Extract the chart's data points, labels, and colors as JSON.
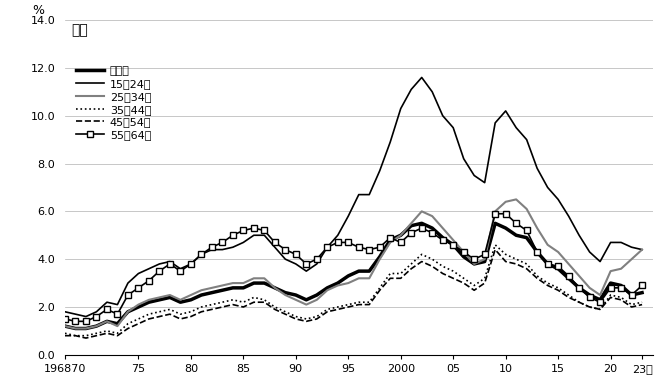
{
  "title": "男性",
  "ylabel": "%",
  "ylim": [
    0.0,
    14.0
  ],
  "yticks": [
    0.0,
    2.0,
    4.0,
    6.0,
    8.0,
    10.0,
    12.0,
    14.0
  ],
  "xtick_labels": [
    "196870",
    "75",
    "80",
    "85",
    "90",
    "95",
    "2000",
    "05",
    "10",
    "15",
    "20",
    "23年"
  ],
  "xtick_positions": [
    1968,
    1975,
    1980,
    1985,
    1990,
    1995,
    2000,
    2005,
    2010,
    2015,
    2020,
    2023
  ],
  "years": [
    1968,
    1969,
    1970,
    1971,
    1972,
    1973,
    1974,
    1975,
    1976,
    1977,
    1978,
    1979,
    1980,
    1981,
    1982,
    1983,
    1984,
    1985,
    1986,
    1987,
    1988,
    1989,
    1990,
    1991,
    1992,
    1993,
    1994,
    1995,
    1996,
    1997,
    1998,
    1999,
    2000,
    2001,
    2002,
    2003,
    2004,
    2005,
    2006,
    2007,
    2008,
    2009,
    2010,
    2011,
    2012,
    2013,
    2014,
    2015,
    2016,
    2017,
    2018,
    2019,
    2020,
    2021,
    2022,
    2023
  ],
  "series": {
    "年齢計": {
      "color": "#000000",
      "linewidth": 2.5,
      "linestyle": "solid",
      "marker": null,
      "markersize": 0,
      "values": [
        1.2,
        1.1,
        1.1,
        1.2,
        1.4,
        1.3,
        1.8,
        2.0,
        2.2,
        2.3,
        2.4,
        2.2,
        2.3,
        2.5,
        2.6,
        2.7,
        2.8,
        2.8,
        3.0,
        3.0,
        2.8,
        2.6,
        2.5,
        2.3,
        2.5,
        2.8,
        3.0,
        3.3,
        3.5,
        3.5,
        4.1,
        4.8,
        5.0,
        5.4,
        5.5,
        5.3,
        4.9,
        4.6,
        4.1,
        3.8,
        3.9,
        5.5,
        5.3,
        5.0,
        4.9,
        4.3,
        3.8,
        3.6,
        3.2,
        2.8,
        2.5,
        2.3,
        3.0,
        2.9,
        2.5,
        2.6
      ]
    },
    "15～24歳": {
      "color": "#000000",
      "linewidth": 1.2,
      "linestyle": "solid",
      "marker": null,
      "markersize": 0,
      "values": [
        1.8,
        1.7,
        1.6,
        1.8,
        2.2,
        2.1,
        3.0,
        3.4,
        3.6,
        3.8,
        3.9,
        3.6,
        3.8,
        4.2,
        4.4,
        4.4,
        4.5,
        4.7,
        5.0,
        5.0,
        4.5,
        4.0,
        3.8,
        3.5,
        3.8,
        4.5,
        5.0,
        5.8,
        6.7,
        6.7,
        7.7,
        8.9,
        10.3,
        11.1,
        11.6,
        11.0,
        10.0,
        9.5,
        8.2,
        7.5,
        7.2,
        9.7,
        10.2,
        9.5,
        9.0,
        7.8,
        7.0,
        6.5,
        5.8,
        5.0,
        4.3,
        3.9,
        4.7,
        4.7,
        4.5,
        4.4
      ]
    },
    "25～34歳": {
      "color": "#808080",
      "linewidth": 1.5,
      "linestyle": "solid",
      "marker": null,
      "markersize": 0,
      "values": [
        1.2,
        1.1,
        1.1,
        1.2,
        1.4,
        1.2,
        1.8,
        2.1,
        2.3,
        2.4,
        2.5,
        2.3,
        2.5,
        2.7,
        2.8,
        2.9,
        3.0,
        3.0,
        3.2,
        3.2,
        2.8,
        2.5,
        2.3,
        2.1,
        2.3,
        2.7,
        2.9,
        3.0,
        3.2,
        3.2,
        4.0,
        4.7,
        5.0,
        5.5,
        6.0,
        5.8,
        5.3,
        4.8,
        4.3,
        3.8,
        4.0,
        6.0,
        6.4,
        6.5,
        6.1,
        5.3,
        4.6,
        4.3,
        3.8,
        3.3,
        2.8,
        2.5,
        3.5,
        3.6,
        4.0,
        4.4
      ]
    },
    "35～44歳": {
      "color": "#000000",
      "linewidth": 1.2,
      "linestyle": "dotted",
      "marker": null,
      "markersize": 0,
      "values": [
        0.9,
        0.8,
        0.8,
        0.9,
        1.0,
        0.9,
        1.3,
        1.5,
        1.7,
        1.8,
        1.9,
        1.7,
        1.8,
        2.0,
        2.1,
        2.2,
        2.3,
        2.2,
        2.4,
        2.3,
        2.0,
        1.8,
        1.6,
        1.5,
        1.6,
        1.9,
        2.0,
        2.1,
        2.2,
        2.2,
        2.8,
        3.4,
        3.4,
        3.8,
        4.2,
        4.0,
        3.7,
        3.5,
        3.2,
        2.9,
        3.2,
        4.6,
        4.2,
        4.0,
        3.8,
        3.3,
        3.0,
        2.8,
        2.5,
        2.2,
        2.0,
        1.9,
        2.5,
        2.4,
        2.1,
        2.2
      ]
    },
    "45～54歳": {
      "color": "#000000",
      "linewidth": 1.2,
      "linestyle": "dashed",
      "marker": null,
      "markersize": 0,
      "values": [
        0.8,
        0.8,
        0.7,
        0.8,
        0.9,
        0.8,
        1.1,
        1.3,
        1.5,
        1.6,
        1.7,
        1.5,
        1.6,
        1.8,
        1.9,
        2.0,
        2.1,
        2.0,
        2.2,
        2.2,
        1.9,
        1.7,
        1.5,
        1.4,
        1.5,
        1.8,
        1.9,
        2.0,
        2.1,
        2.1,
        2.7,
        3.2,
        3.2,
        3.6,
        3.9,
        3.7,
        3.4,
        3.2,
        3.0,
        2.7,
        3.0,
        4.4,
        3.9,
        3.8,
        3.6,
        3.2,
        2.9,
        2.7,
        2.4,
        2.2,
        2.0,
        1.9,
        2.4,
        2.3,
        2.0,
        2.1
      ]
    },
    "55～64歳": {
      "color": "#000000",
      "linewidth": 1.2,
      "linestyle": "solid",
      "marker": "s",
      "markersize": 4,
      "markerfacecolor": "#ffffff",
      "markeredgecolor": "#000000",
      "values": [
        1.5,
        1.4,
        1.4,
        1.6,
        1.9,
        1.7,
        2.5,
        2.8,
        3.1,
        3.5,
        3.8,
        3.5,
        3.8,
        4.2,
        4.5,
        4.7,
        5.0,
        5.2,
        5.3,
        5.2,
        4.7,
        4.4,
        4.2,
        3.8,
        4.0,
        4.5,
        4.7,
        4.7,
        4.5,
        4.4,
        4.5,
        4.9,
        4.7,
        5.1,
        5.3,
        5.1,
        4.8,
        4.6,
        4.3,
        4.0,
        4.2,
        5.9,
        5.9,
        5.5,
        5.2,
        4.3,
        3.8,
        3.7,
        3.3,
        2.8,
        2.4,
        2.2,
        2.8,
        2.8,
        2.5,
        2.9
      ]
    }
  },
  "legend_order": [
    "年齢計",
    "15～24歳",
    "25～34歳",
    "35～44歳",
    "45～54歳",
    "55～64歳"
  ],
  "background_color": "#ffffff",
  "grid_color": "#b0b0b0"
}
